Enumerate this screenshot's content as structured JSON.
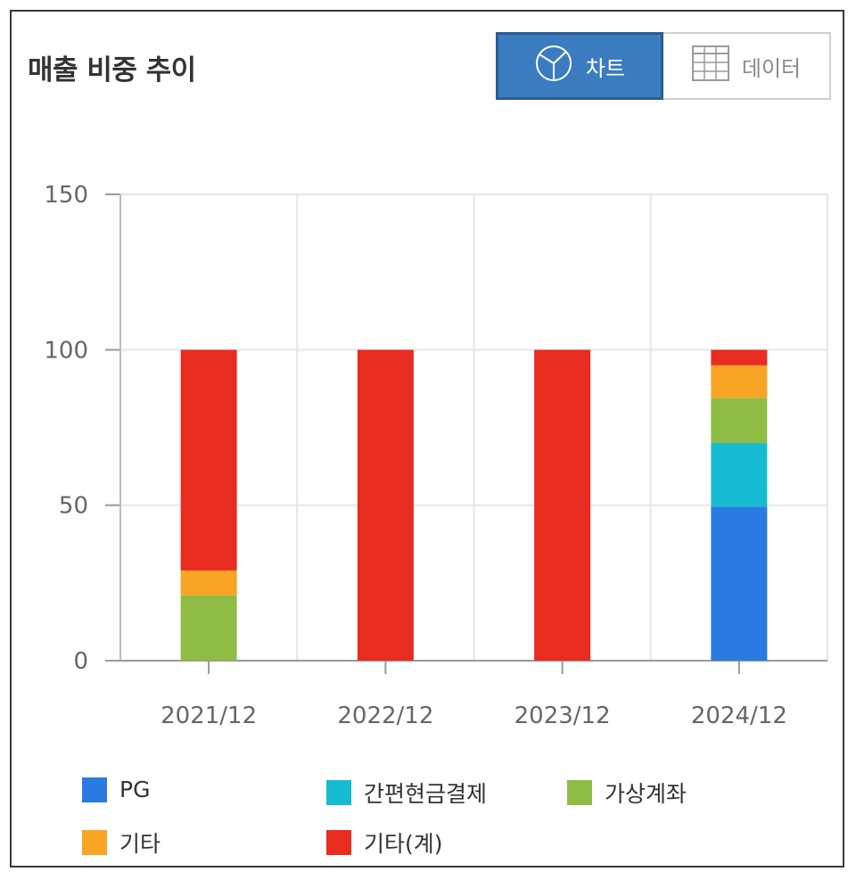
{
  "header": {
    "title": "매출 비중 추이",
    "chart_button_label": "차트",
    "data_button_label": "데이터"
  },
  "icons": {
    "chart_icon": "pie-chart-icon",
    "data_icon": "table-grid-icon"
  },
  "colors": {
    "PG": "#2a7ae2",
    "간편현금결제": "#17bcd3",
    "가상계좌": "#8fbc45",
    "기타": "#f8a425",
    "기타(계)": "#e92c20",
    "active_button": "#3b7cc0"
  },
  "chart_data": {
    "type": "bar",
    "stacked": true,
    "categories": [
      "2021/12",
      "2022/12",
      "2023/12",
      "2024/12"
    ],
    "series": [
      {
        "name": "PG",
        "values": [
          0,
          0,
          0,
          49.5
        ]
      },
      {
        "name": "간편현금결제",
        "values": [
          0,
          0,
          0,
          20.5
        ]
      },
      {
        "name": "가상계좌",
        "values": [
          21,
          0,
          0,
          14.5
        ]
      },
      {
        "name": "기타",
        "values": [
          8,
          0,
          0,
          10.5
        ]
      },
      {
        "name": "기타(계)",
        "values": [
          71,
          100,
          100,
          5
        ]
      }
    ],
    "ylim": [
      0,
      150
    ],
    "yticks": [
      "0",
      "50",
      "100",
      "150"
    ],
    "grid": true,
    "legend_position": "bottom"
  }
}
